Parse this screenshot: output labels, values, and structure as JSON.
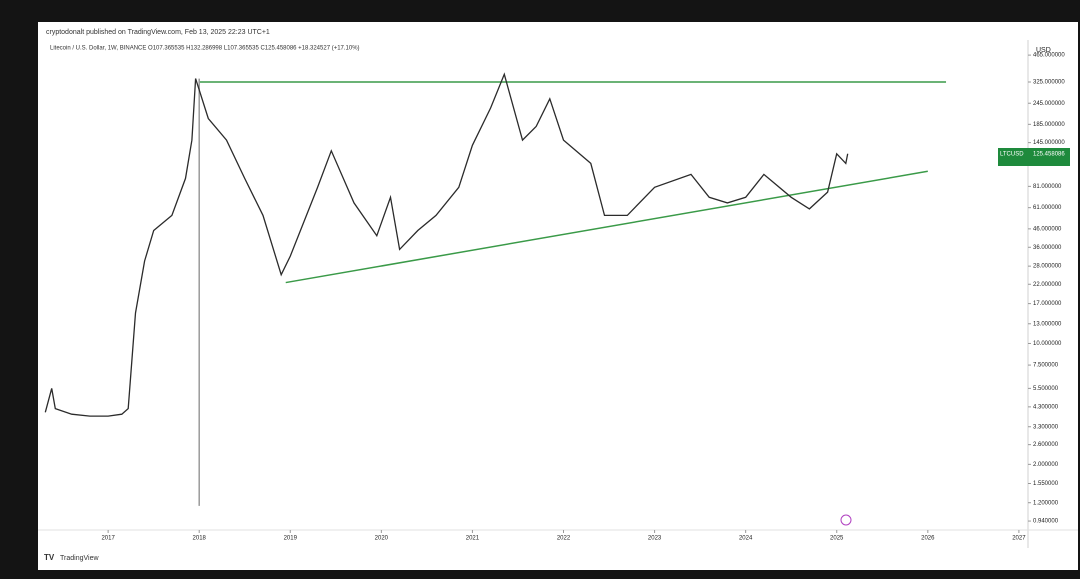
{
  "chart_data": {
    "type": "line",
    "header": "cryptodonalt published on TradingView.com, Feb 13, 2025 22:23 UTC+1",
    "legend": "Litecoin / U.S. Dollar, 1W, BINANCE  O107.365535  H132.286998  L107.365535  C125.458086  +18.324527 (+17.10%)",
    "currency": "USD",
    "brand": "TradingView",
    "price_label": {
      "symbol": "LTCUSD",
      "price": "125.458086"
    },
    "log": true,
    "x": [
      2016.31,
      2016.38,
      2016.42,
      2016.6,
      2016.8,
      2017.0,
      2017.15,
      2017.22,
      2017.3,
      2017.4,
      2017.5,
      2017.7,
      2017.85,
      2017.92,
      2017.96,
      2018.1,
      2018.3,
      2018.5,
      2018.7,
      2018.9,
      2019.0,
      2019.3,
      2019.45,
      2019.7,
      2019.95,
      2020.1,
      2020.2,
      2020.4,
      2020.6,
      2020.85,
      2021.0,
      2021.2,
      2021.35,
      2021.55,
      2021.7,
      2021.85,
      2022.0,
      2022.3,
      2022.45,
      2022.7,
      2023.0,
      2023.4,
      2023.6,
      2023.8,
      2024.0,
      2024.2,
      2024.5,
      2024.7,
      2024.9,
      2025.0,
      2025.1,
      2025.12
    ],
    "series": [
      {
        "color": "#2b2b2b",
        "values": [
          4.0,
          5.5,
          4.2,
          3.9,
          3.8,
          3.8,
          3.9,
          4.2,
          15,
          30,
          45,
          55,
          90,
          150,
          340,
          200,
          150,
          90,
          55,
          25,
          32,
          80,
          130,
          65,
          42,
          70,
          35,
          45,
          55,
          80,
          140,
          230,
          360,
          150,
          180,
          260,
          150,
          110,
          55,
          55,
          80,
          95,
          70,
          65,
          70,
          95,
          70,
          60,
          75,
          125,
          110,
          125
        ]
      }
    ],
    "drawings": [
      {
        "color": "#3a9a48",
        "x": [
          2018.0,
          2026.2
        ],
        "y": [
          325,
          325
        ]
      },
      {
        "color": "#3a9a48",
        "x": [
          2018.95,
          2026.0
        ],
        "y": [
          22.5,
          99
        ]
      },
      {
        "color": "#999999",
        "x": [
          2018.0,
          2018.0
        ],
        "y": [
          340,
          1.15
        ]
      }
    ],
    "xlim": [
      2016.23,
      2027.1
    ],
    "xticks": [
      2017,
      2018,
      2019,
      2020,
      2021,
      2022,
      2023,
      2024,
      2025,
      2026,
      2027
    ],
    "ylim": [
      0.857,
      532
    ],
    "yticks": [
      {
        "value": 465,
        "label": "465.000000"
      },
      {
        "value": 325,
        "label": "325.000000"
      },
      {
        "value": 245,
        "label": "245.000000"
      },
      {
        "value": 185,
        "label": "185.000000"
      },
      {
        "value": 145,
        "label": "145.000000"
      },
      {
        "value": 81,
        "label": "81.000000"
      },
      {
        "value": 61,
        "label": "61.000000"
      },
      {
        "value": 46,
        "label": "46.000000"
      },
      {
        "value": 36,
        "label": "36.000000"
      },
      {
        "value": 28,
        "label": "28.000000"
      },
      {
        "value": 22,
        "label": "22.000000"
      },
      {
        "value": 17,
        "label": "17.000000"
      },
      {
        "value": 13,
        "label": "13.000000"
      },
      {
        "value": 10,
        "label": "10.000000"
      },
      {
        "value": 7.5,
        "label": "7.500000"
      },
      {
        "value": 5.5,
        "label": "5.500000"
      },
      {
        "value": 4.3,
        "label": "4.300000"
      },
      {
        "value": 3.3,
        "label": "3.300000"
      },
      {
        "value": 2.6,
        "label": "2.600000"
      },
      {
        "value": 2,
        "label": "2.000000"
      },
      {
        "value": 1.55,
        "label": "1.550000"
      },
      {
        "value": 1.2,
        "label": "1.200000"
      },
      {
        "value": 0.94,
        "label": "0.940000"
      }
    ]
  }
}
